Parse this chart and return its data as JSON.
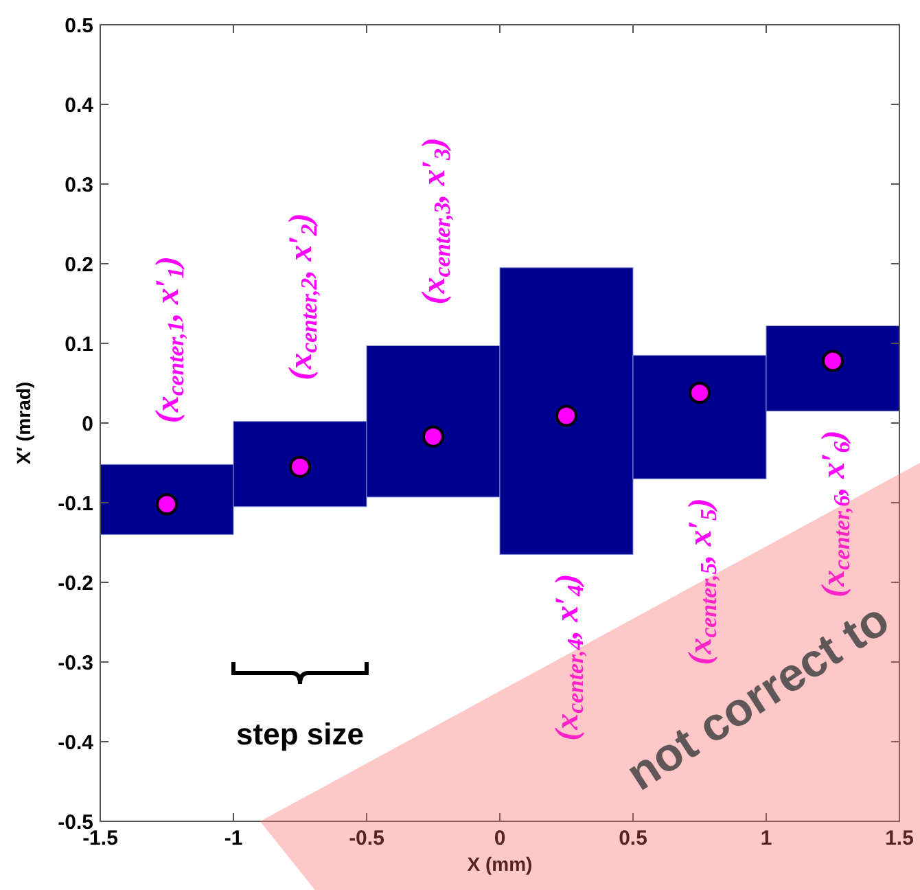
{
  "chart_data": {
    "type": "bar",
    "xlabel": "X (mm)",
    "ylabel": "X′ (mrad)",
    "x": [
      -1.25,
      -0.75,
      -0.25,
      0.25,
      0.75,
      1.25
    ],
    "series": [
      {
        "color": "#00008f",
        "base": [
          -0.14,
          -0.105,
          -0.093,
          -0.165,
          -0.07,
          0.015
        ],
        "values": [
          0.088,
          0.107,
          0.19,
          0.36,
          0.155,
          0.107
        ]
      },
      {
        "type": "scatter",
        "color": "#ff00ff",
        "marker": "circle",
        "values": [
          -0.102,
          -0.055,
          -0.017,
          0.009,
          0.038,
          0.078
        ]
      }
    ],
    "xlim": [
      -1.5,
      1.5
    ],
    "xticks": [
      -1.5,
      -1,
      -0.5,
      0,
      0.5,
      1,
      1.5
    ],
    "ylim": [
      -0.5,
      0.5
    ],
    "yticks": [
      -0.5,
      -0.4,
      -0.3,
      -0.2,
      -0.1,
      0,
      0.1,
      0.2,
      0.3,
      0.4,
      0.5
    ],
    "grid": false,
    "annotations": [
      "(x$_{center,1}$, x′$_{1}$)",
      "(x$_{center,2}$, x′$_{2}$)",
      "(x$_{center,3}$, x′$_{3}$)",
      "(x$_{center,4}$, x′$_{4}$)",
      "(x$_{center,5}$, x′$_{5}$)",
      "(x$_{center,6}$, x′$_{6}$)",
      "step size",
      "not correct to"
    ]
  }
}
